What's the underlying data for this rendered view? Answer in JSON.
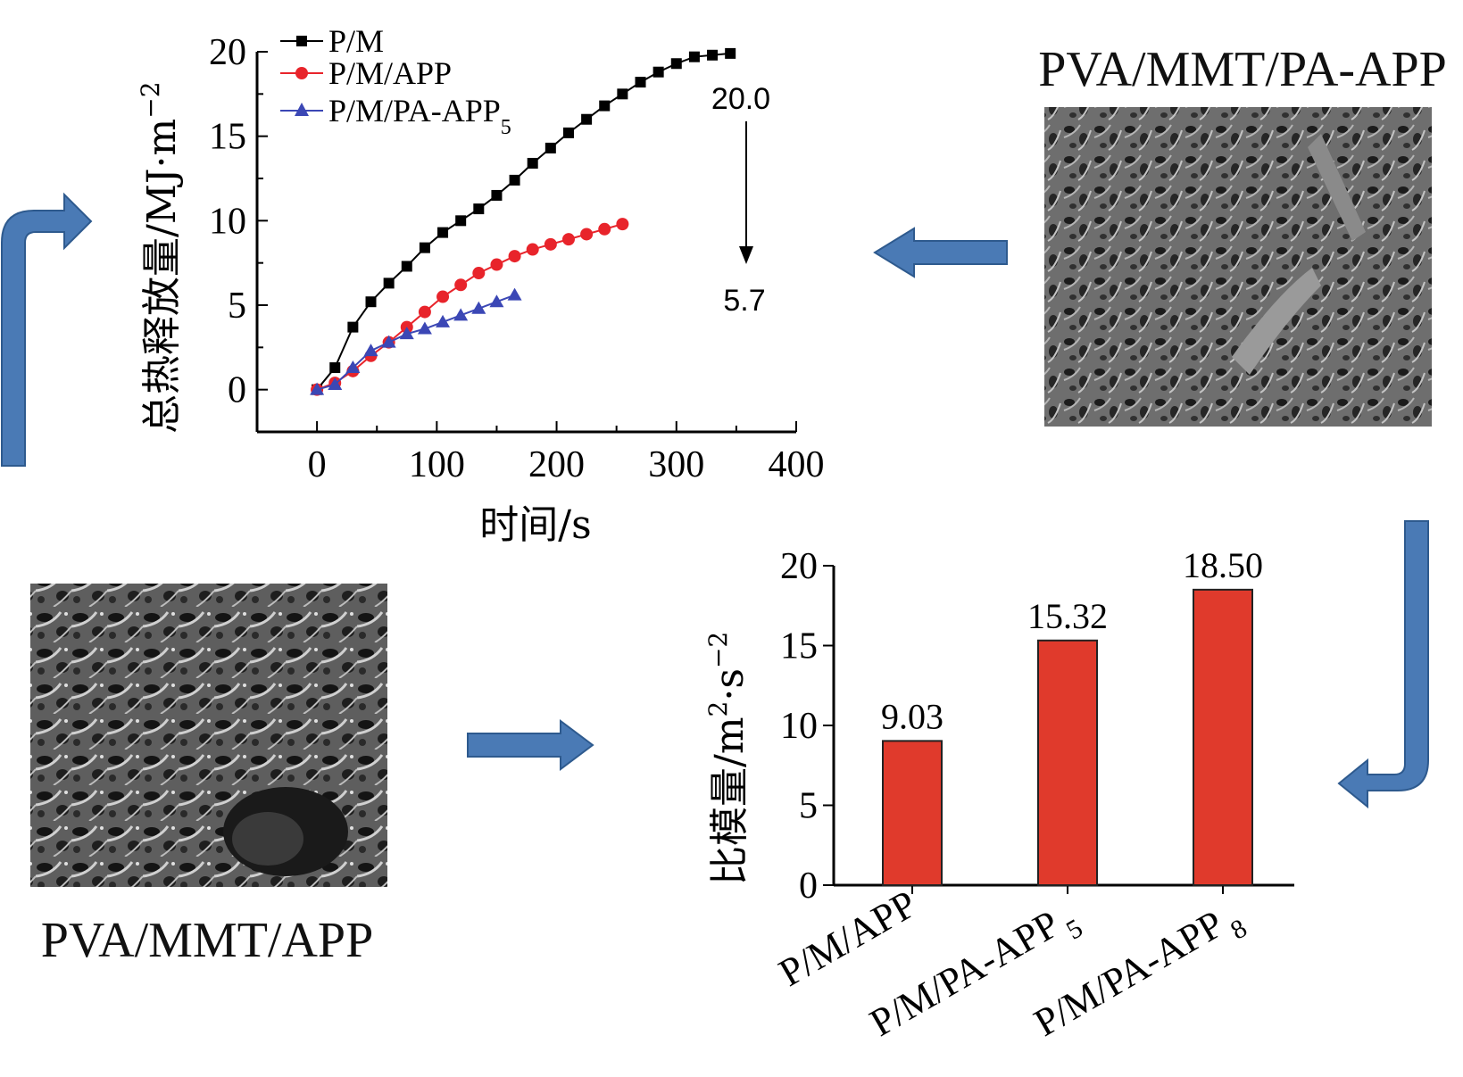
{
  "line_chart": {
    "ylabel": "总热释放量/MJ·m",
    "ylabel_sup": "−2",
    "xlabel": "时间/s",
    "xticks": [
      "0",
      "100",
      "200",
      "300",
      "400"
    ],
    "yticks": [
      "0",
      "5",
      "10",
      "15",
      "20"
    ],
    "legend": [
      {
        "label": "P/M",
        "sub": ""
      },
      {
        "label": "P/M/APP",
        "sub": ""
      },
      {
        "label": "P/M/PA-APP",
        "sub": "5"
      }
    ],
    "annot_top": "20.0",
    "annot_bottom": "5.7"
  },
  "bar_chart": {
    "ylabel": "比模量/m",
    "ylabel_sup2": "2",
    "ylabel_mid": "·s",
    "ylabel_sup": "−2",
    "yticks": [
      "0",
      "5",
      "10",
      "15",
      "20"
    ],
    "categories": [
      {
        "label": "P/M/APP",
        "sub": ""
      },
      {
        "label": "P/M/PA-APP",
        "sub": "5"
      },
      {
        "label": "P/M/PA-APP",
        "sub": "8"
      }
    ],
    "value_labels": [
      "9.03",
      "15.32",
      "18.50"
    ]
  },
  "captions": {
    "top_right": "PVA/MMT/PA-APP",
    "bottom_left": "PVA/MMT/APP"
  },
  "colors": {
    "arrow": "#4a7ab5",
    "bar": "#e03a2c",
    "series": [
      "#000000",
      "#e8242b",
      "#3b47b5"
    ]
  },
  "chart_data": [
    {
      "type": "line",
      "xlabel": "时间/s",
      "ylabel": "总热释放量/MJ·m−2",
      "xlim": [
        -50,
        400
      ],
      "ylim": [
        -2.5,
        20
      ],
      "series": [
        {
          "name": "P/M",
          "marker": "square",
          "x": [
            0,
            15,
            30,
            45,
            60,
            75,
            90,
            105,
            120,
            135,
            150,
            165,
            180,
            195,
            210,
            225,
            240,
            255,
            270,
            285,
            300,
            315,
            330,
            345
          ],
          "y": [
            0,
            1.3,
            3.7,
            5.2,
            6.3,
            7.3,
            8.4,
            9.3,
            10.0,
            10.7,
            11.5,
            12.4,
            13.4,
            14.3,
            15.2,
            16.0,
            16.8,
            17.5,
            18.2,
            18.8,
            19.3,
            19.7,
            19.8,
            19.9
          ]
        },
        {
          "name": "P/M/APP",
          "marker": "circle",
          "x": [
            0,
            15,
            30,
            45,
            60,
            75,
            90,
            105,
            120,
            135,
            150,
            165,
            180,
            195,
            210,
            225,
            240,
            255
          ],
          "y": [
            0,
            0.4,
            1.1,
            2.0,
            2.8,
            3.7,
            4.6,
            5.5,
            6.2,
            6.9,
            7.4,
            7.9,
            8.3,
            8.6,
            8.9,
            9.2,
            9.5,
            9.8
          ]
        },
        {
          "name": "P/M/PA-APP5",
          "marker": "triangle",
          "x": [
            0,
            15,
            30,
            45,
            60,
            75,
            90,
            105,
            120,
            135,
            150,
            165
          ],
          "y": [
            0,
            0.3,
            1.3,
            2.3,
            2.8,
            3.3,
            3.6,
            4.0,
            4.4,
            4.8,
            5.2,
            5.6
          ]
        }
      ]
    },
    {
      "type": "bar",
      "categories": [
        "P/M/APP",
        "P/M/PA-APP5",
        "P/M/PA-APP8"
      ],
      "values": [
        9.03,
        15.32,
        18.5
      ],
      "ylabel": "比模量/m2·s−2",
      "ylim": [
        0,
        20
      ]
    }
  ]
}
